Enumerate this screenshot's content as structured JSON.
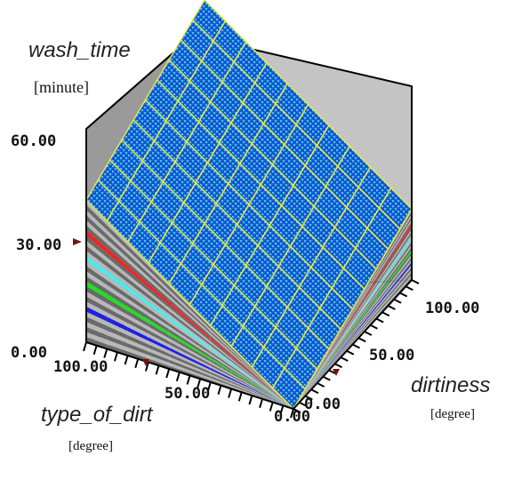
{
  "chart_data": {
    "type": "surface",
    "zlabel": "wash_time",
    "zunit": "[minute]",
    "xlabel": "type_of_dirt",
    "xunit": "[degree]",
    "ylabel": "dirtiness",
    "yunit": "[degree]",
    "z_ticks": [
      "60.00",
      "30.00",
      "0.00"
    ],
    "x_ticks": [
      "100.00",
      "50.00",
      "0.00"
    ],
    "y_ticks": [
      "100.00",
      "50.00",
      "0.00"
    ],
    "zlim": [
      0,
      60
    ],
    "xlim": [
      0,
      100
    ],
    "ylim": [
      0,
      100
    ],
    "grid_x": [
      0,
      10,
      20,
      30,
      40,
      50,
      60,
      70,
      80,
      90,
      100
    ],
    "grid_y": [
      0,
      10,
      20,
      30,
      40,
      50,
      60,
      70,
      80,
      90,
      100
    ],
    "z_samples": [
      {
        "x": 0,
        "y": 0,
        "z": 0
      },
      {
        "x": 100,
        "y": 0,
        "z": 40
      },
      {
        "x": 0,
        "y": 100,
        "z": 20
      },
      {
        "x": 100,
        "y": 100,
        "z": 60
      }
    ],
    "colors": {
      "surface": "#1a5fd6",
      "surface_speckle": "#3ecbe8",
      "mesh": "#e8e84a",
      "back_wall": "#c0c0c0",
      "band_red": "#ff2020",
      "band_cyan": "#40f0f0",
      "band_green": "#20e020",
      "band_blue": "#2020e0",
      "marker": "#7a1010"
    }
  }
}
